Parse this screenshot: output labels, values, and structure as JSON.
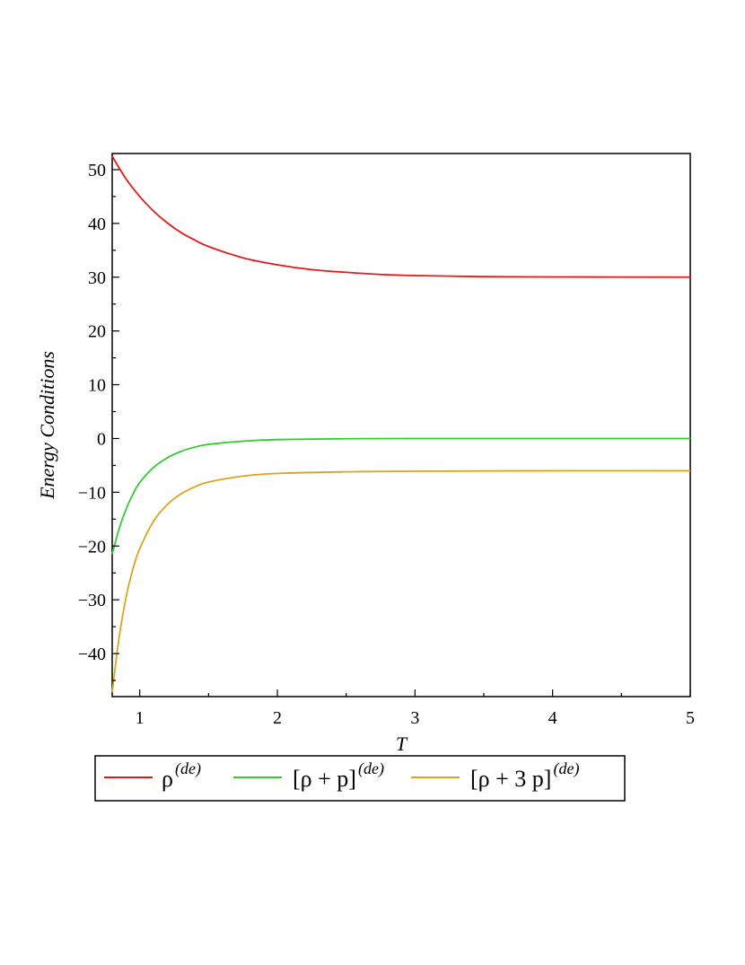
{
  "chart_data": {
    "type": "line",
    "title": "",
    "xlabel": "T",
    "ylabel": "Energy Conditions",
    "xlim": [
      0.8,
      5
    ],
    "ylim": [
      -48,
      53
    ],
    "x_ticks": [
      1,
      2,
      3,
      4,
      5
    ],
    "x_tick_labels": [
      "1",
      "2",
      "3",
      "4",
      "5"
    ],
    "y_ticks": [
      50,
      40,
      30,
      20,
      10,
      0,
      -10,
      -20,
      -30,
      -40
    ],
    "y_tick_labels": [
      "50",
      "40",
      "30",
      "20",
      "10",
      "0",
      "−10",
      "−20",
      "−30",
      "−40"
    ],
    "grid": false,
    "legend_position": "bottom",
    "series": [
      {
        "name": "ρ(de)",
        "legend_base": "ρ",
        "legend_sup": "(de)",
        "color": "#e31a1c",
        "x": [
          0.8,
          0.9,
          1.0,
          1.1,
          1.2,
          1.3,
          1.4,
          1.5,
          1.75,
          2.0,
          2.25,
          2.5,
          2.75,
          3.0,
          3.5,
          4.0,
          4.5,
          5.0
        ],
        "y": [
          52.5,
          48.3,
          45.0,
          42.3,
          40.1,
          38.3,
          36.9,
          35.7,
          33.6,
          32.3,
          31.4,
          30.9,
          30.5,
          30.3,
          30.1,
          30.05,
          30.02,
          30.0
        ]
      },
      {
        "name": "[ρ + p](de)",
        "legend_base": "[ρ + p]",
        "legend_sup": "(de)",
        "color": "#33cc33",
        "x": [
          0.8,
          0.85,
          0.9,
          0.95,
          1.0,
          1.1,
          1.2,
          1.3,
          1.4,
          1.5,
          1.75,
          2.0,
          2.5,
          3.0,
          4.0,
          5.0
        ],
        "y": [
          -21.5,
          -16.8,
          -13.2,
          -10.4,
          -8.2,
          -5.4,
          -3.6,
          -2.4,
          -1.6,
          -1.1,
          -0.5,
          -0.2,
          -0.05,
          0,
          0,
          0
        ]
      },
      {
        "name": "[ρ + 3 p](de)",
        "legend_base": "[ρ + 3 p]",
        "legend_sup": "(de)",
        "color": "#daa520",
        "x": [
          0.8,
          0.85,
          0.9,
          0.95,
          1.0,
          1.1,
          1.2,
          1.3,
          1.4,
          1.5,
          1.75,
          2.0,
          2.5,
          3.0,
          4.0,
          5.0
        ],
        "y": [
          -47.2,
          -37.0,
          -29.6,
          -24.3,
          -20.5,
          -15.4,
          -12.3,
          -10.3,
          -9.0,
          -8.1,
          -7.0,
          -6.5,
          -6.2,
          -6.1,
          -6.0,
          -6.0
        ]
      }
    ]
  }
}
